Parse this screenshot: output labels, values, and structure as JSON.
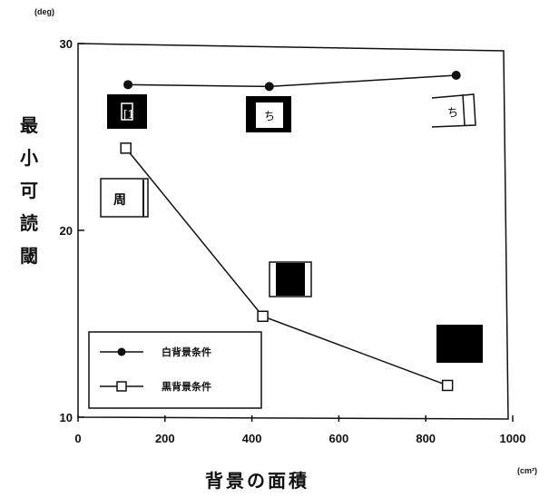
{
  "chart_data": {
    "type": "line",
    "xlabel": "背景の面積",
    "ylabel": "最小可読閾",
    "x_unit": "(cm²)",
    "y_unit": "(deg)",
    "xlim": [
      0,
      1000
    ],
    "ylim": [
      10,
      30
    ],
    "x_ticks": [
      "0",
      "200",
      "400",
      "600",
      "800",
      "1000"
    ],
    "y_ticks": [
      "10",
      "20",
      "30"
    ],
    "legend_position": "bottom-left",
    "series": [
      {
        "name": "白背景条件",
        "marker": "filled-circle",
        "color": "#111111",
        "x": [
          115,
          440,
          870
        ],
        "y": [
          27.8,
          27.7,
          28.3
        ]
      },
      {
        "name": "黒背景条件",
        "marker": "open-square",
        "color": "#111111",
        "x": [
          110,
          425,
          850
        ],
        "y": [
          24.4,
          15.4,
          11.7
        ]
      }
    ],
    "annotations": [
      {
        "kind": "black-box",
        "text": "[1"
      },
      {
        "kind": "black-box",
        "text": "ち"
      },
      {
        "kind": "white-box",
        "text": "ち"
      },
      {
        "kind": "white-box",
        "text": "周"
      },
      {
        "kind": "black-box",
        "text": ""
      },
      {
        "kind": "black-box",
        "text": ""
      }
    ]
  }
}
